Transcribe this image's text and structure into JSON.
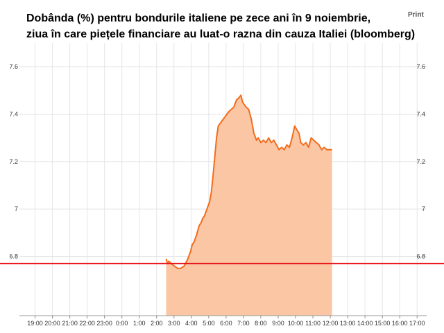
{
  "print_label": "Print",
  "chart_data": {
    "type": "area",
    "title_lines": [
      "Dobânda (%) pentru bondurile italiene pe zece ani în 9 noiembrie,",
      "ziua în care piețele financiare au luat-o razna din cauza Italiei (bloomberg)"
    ],
    "x_ticks": [
      "19:00",
      "20:00",
      "21:00",
      "22:00",
      "23:00",
      "0:00",
      "1:00",
      "2:00",
      "3:00",
      "4:00",
      "5:00",
      "6:00",
      "7:00",
      "8:00",
      "9:00",
      "10:00",
      "11:00",
      "12:00",
      "13:00",
      "14:00",
      "15:00",
      "16:00",
      "17:00"
    ],
    "y_ticks": [
      "6.8",
      "7",
      "7.2",
      "7.4",
      "7.6"
    ],
    "ylim": [
      6.55,
      7.7
    ],
    "xlim_hours": [
      -5.9,
      17.55
    ],
    "grid": true,
    "reference_line": {
      "value": 6.77,
      "color": "#e8141b"
    },
    "series": [
      {
        "color": "#f26c1d",
        "fill": "#fbc6a4",
        "x": [
          2.55,
          2.62,
          2.7,
          2.85,
          3.0,
          3.2,
          3.4,
          3.6,
          3.8,
          3.95,
          4.05,
          4.15,
          4.3,
          4.45,
          4.55,
          4.65,
          4.75,
          4.85,
          4.95,
          5.05,
          5.15,
          5.25,
          5.35,
          5.45,
          5.55,
          5.65,
          5.75,
          5.85,
          5.95,
          6.05,
          6.15,
          6.3,
          6.45,
          6.6,
          6.75,
          6.85,
          6.95,
          7.05,
          7.15,
          7.3,
          7.45,
          7.6,
          7.75,
          7.85,
          8.0,
          8.15,
          8.3,
          8.45,
          8.6,
          8.75,
          8.9,
          9.05,
          9.2,
          9.35,
          9.5,
          9.65,
          9.8,
          9.95,
          10.1,
          10.2,
          10.3,
          10.45,
          10.6,
          10.75,
          10.9,
          11.05,
          11.2,
          11.35,
          11.5,
          11.65,
          11.8,
          11.95,
          12.1
        ],
        "y": [
          6.79,
          6.77,
          6.78,
          6.77,
          6.76,
          6.75,
          6.75,
          6.76,
          6.79,
          6.82,
          6.85,
          6.86,
          6.89,
          6.93,
          6.94,
          6.96,
          6.97,
          6.99,
          7.01,
          7.03,
          7.07,
          7.14,
          7.22,
          7.3,
          7.35,
          7.36,
          7.37,
          7.38,
          7.39,
          7.4,
          7.41,
          7.42,
          7.43,
          7.46,
          7.47,
          7.48,
          7.45,
          7.44,
          7.43,
          7.42,
          7.38,
          7.32,
          7.29,
          7.3,
          7.28,
          7.29,
          7.28,
          7.3,
          7.28,
          7.29,
          7.27,
          7.25,
          7.26,
          7.25,
          7.27,
          7.26,
          7.3,
          7.35,
          7.33,
          7.32,
          7.28,
          7.27,
          7.28,
          7.26,
          7.3,
          7.29,
          7.28,
          7.27,
          7.25,
          7.26,
          7.25,
          7.25,
          7.25
        ]
      }
    ]
  }
}
